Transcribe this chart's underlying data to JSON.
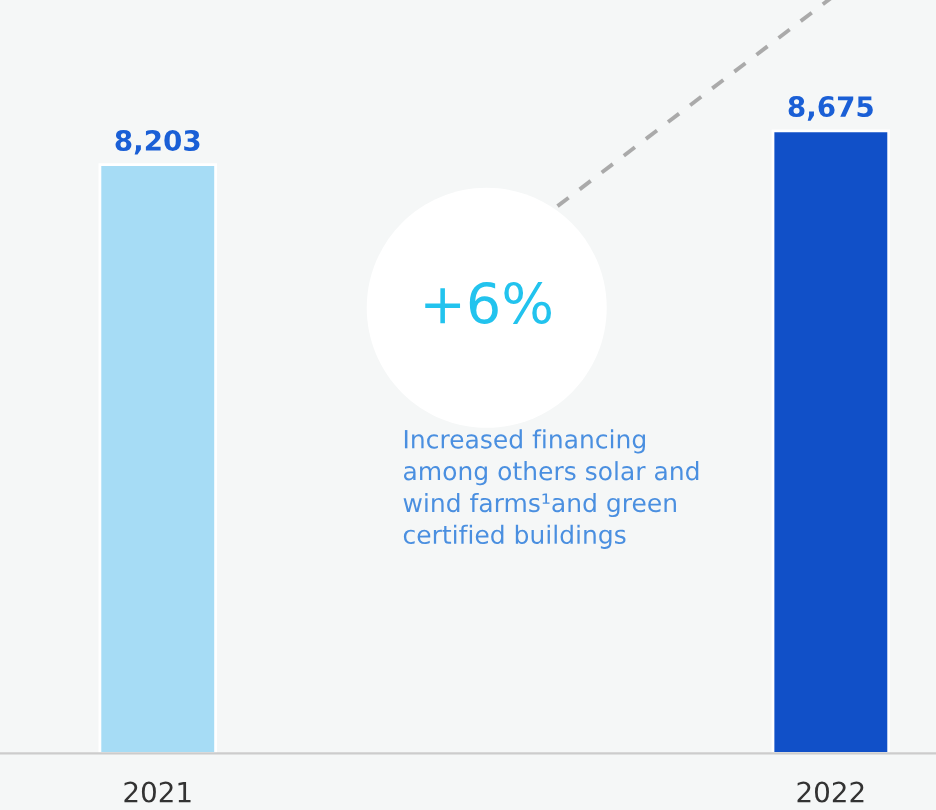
{
  "chart_data": {
    "type": "bar",
    "categories": [
      "2021",
      "2022"
    ],
    "values": [
      8203,
      8675
    ],
    "colors": [
      "#a6dcf5",
      "#1150c8"
    ],
    "value_labels": [
      "8,203",
      "8,675"
    ],
    "annotations": [
      "+6%",
      "Increased financing\namong others solar and\nwind farms¹and green\ncertified buildings"
    ],
    "grid": false,
    "legend": false
  }
}
